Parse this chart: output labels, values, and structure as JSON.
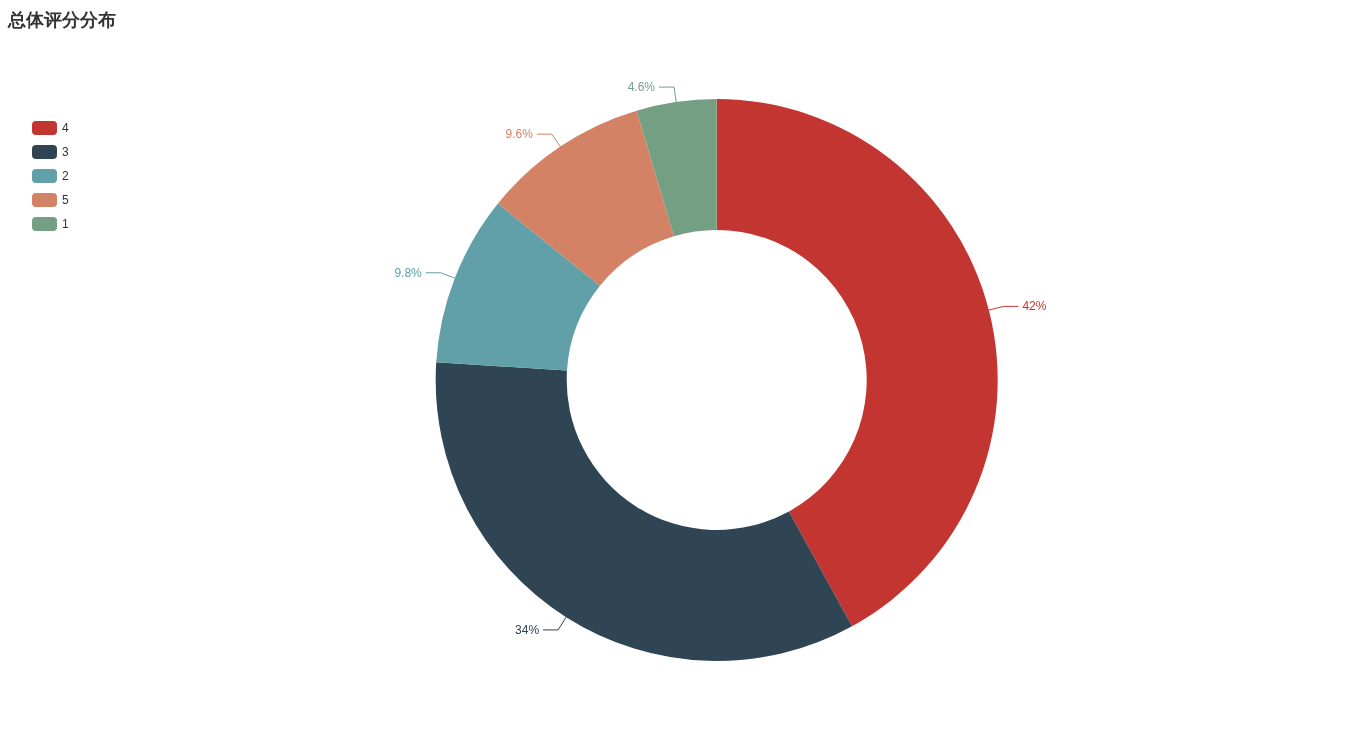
{
  "chart_data": {
    "type": "donut",
    "title": "总体评分分布",
    "categories": [
      "4",
      "3",
      "2",
      "5",
      "1"
    ],
    "values": [
      42,
      34,
      9.8,
      9.6,
      4.6
    ],
    "colors": [
      "#c23531",
      "#2f4554",
      "#61a0a8",
      "#d48265",
      "#749f83"
    ],
    "value_labels": [
      "42%",
      "34%",
      "9.8%",
      "9.6%",
      "4.6%"
    ],
    "legend": "top left"
  }
}
